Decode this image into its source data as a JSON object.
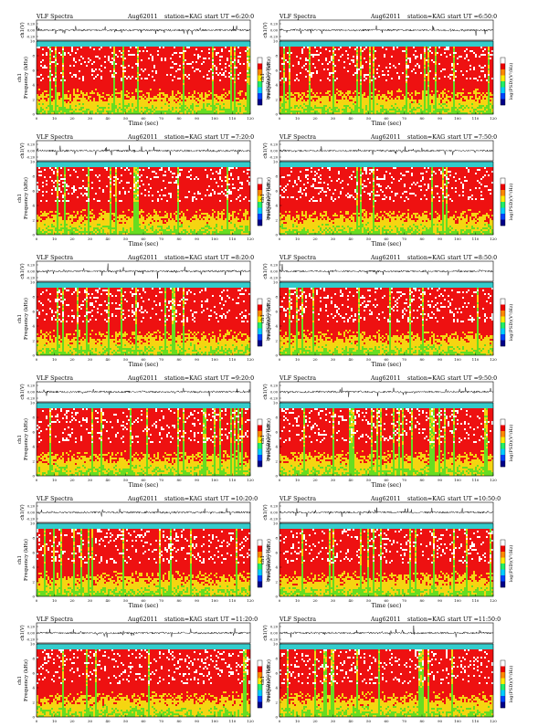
{
  "colors": {
    "spec_high": "#ee1111",
    "spec_mid": "#f5d511",
    "spec_low": "#66dd22",
    "band_top": "#33cccc",
    "colorbar": [
      "#000088",
      "#0044ff",
      "#00ccff",
      "#22ee66",
      "#ffee00",
      "#ff8800",
      "#ee0000",
      "#ffffff"
    ]
  },
  "chart_data": [
    {
      "type": "heatmap",
      "title": "VLF Spectra",
      "date": "Aug62011",
      "station": "station=KAG",
      "start_ut": "start  UT =6:20:0",
      "ylabel_wave": "ch1(V)",
      "ylabel_spec_1": "ch1",
      "ylabel_spec_2": "Frequency (kHz)",
      "xlabel": "Time  (sec)",
      "cbar_label": "log(PSD)(V²/Hz)",
      "wave_ticks": [
        "0.20",
        "0.00",
        "-0.20"
      ],
      "freq_ticks": [
        "0",
        "2",
        "4",
        "6",
        "8",
        "10"
      ],
      "time_ticks": [
        "0",
        "10",
        "20",
        "30",
        "40",
        "50",
        "60",
        "70",
        "80",
        "90",
        "100",
        "110",
        "120"
      ],
      "cbar_ticks": [
        "",
        "",
        "",
        "",
        ""
      ],
      "xlim": [
        0,
        120
      ],
      "ylim": [
        0,
        10
      ]
    },
    {
      "type": "heatmap",
      "title": "VLF Spectra",
      "date": "Aug62011",
      "station": "station=KAG",
      "start_ut": "start  UT =6:50:0",
      "ylabel_wave": "ch1(V)",
      "ylabel_spec_1": "ch1",
      "ylabel_spec_2": "Frequency (kHz)",
      "xlabel": "Time  (sec)",
      "cbar_label": "log(PSD)(V²/Hz)",
      "wave_ticks": [
        "0.20",
        "0.00",
        "-0.20"
      ],
      "freq_ticks": [
        "0",
        "2",
        "4",
        "6",
        "8",
        "10"
      ],
      "time_ticks": [
        "0",
        "10",
        "20",
        "30",
        "40",
        "50",
        "60",
        "70",
        "80",
        "90",
        "100",
        "110",
        "120"
      ],
      "cbar_ticks": [
        "",
        "",
        "",
        "",
        ""
      ],
      "xlim": [
        0,
        120
      ],
      "ylim": [
        0,
        10
      ]
    },
    {
      "type": "heatmap",
      "title": "VLF Spectra",
      "date": "Aug62011",
      "station": "station=KAG",
      "start_ut": "start  UT =7:20:0",
      "ylabel_wave": "ch1(V)",
      "ylabel_spec_1": "ch1",
      "ylabel_spec_2": "Frequency (kHz)",
      "xlabel": "Time  (sec)",
      "cbar_label": "log(PSD)(V²/Hz)",
      "wave_ticks": [
        "0.20",
        "0.00",
        "-0.20"
      ],
      "freq_ticks": [
        "0",
        "2",
        "4",
        "6",
        "8",
        "10"
      ],
      "time_ticks": [
        "0",
        "10",
        "20",
        "30",
        "40",
        "50",
        "60",
        "70",
        "80",
        "90",
        "100",
        "110",
        "120"
      ],
      "cbar_ticks": [
        "",
        "",
        "",
        "",
        ""
      ],
      "xlim": [
        0,
        120
      ],
      "ylim": [
        0,
        10
      ]
    },
    {
      "type": "heatmap",
      "title": "VLF Spectra",
      "date": "Aug62011",
      "station": "station=KAG",
      "start_ut": "start  UT =7:50:0",
      "ylabel_wave": "ch1(V)",
      "ylabel_spec_1": "ch1",
      "ylabel_spec_2": "Frequency (kHz)",
      "xlabel": "Time  (sec)",
      "cbar_label": "log(PSD)(V²/Hz)",
      "wave_ticks": [
        "0.20",
        "0.00",
        "-0.20"
      ],
      "freq_ticks": [
        "0",
        "2",
        "4",
        "6",
        "8",
        "10"
      ],
      "time_ticks": [
        "0",
        "10",
        "20",
        "30",
        "40",
        "50",
        "60",
        "70",
        "80",
        "90",
        "100",
        "110",
        "120"
      ],
      "cbar_ticks": [
        "",
        "",
        "",
        "",
        ""
      ],
      "xlim": [
        0,
        120
      ],
      "ylim": [
        0,
        10
      ]
    },
    {
      "type": "heatmap",
      "title": "VLF Spectra",
      "date": "Aug62011",
      "station": "station=KAG",
      "start_ut": "start  UT =8:20:0",
      "ylabel_wave": "ch1(V)",
      "ylabel_spec_1": "ch1",
      "ylabel_spec_2": "Frequency (kHz)",
      "xlabel": "Time  (sec)",
      "cbar_label": "log(PSD)(V²/Hz)",
      "wave_ticks": [
        "0.20",
        "0.00",
        "-0.20"
      ],
      "freq_ticks": [
        "0",
        "2",
        "4",
        "6",
        "8",
        "10"
      ],
      "time_ticks": [
        "0",
        "10",
        "20",
        "30",
        "40",
        "50",
        "60",
        "70",
        "80",
        "90",
        "100",
        "110",
        "120"
      ],
      "cbar_ticks": [
        "",
        "",
        "",
        "",
        ""
      ],
      "xlim": [
        0,
        120
      ],
      "ylim": [
        0,
        10
      ]
    },
    {
      "type": "heatmap",
      "title": "VLF Spectra",
      "date": "Aug62011",
      "station": "station=KAG",
      "start_ut": "start  UT =8:50:0",
      "ylabel_wave": "ch1(V)",
      "ylabel_spec_1": "ch1",
      "ylabel_spec_2": "Frequency (kHz)",
      "xlabel": "Time  (sec)",
      "cbar_label": "log(PSD)(V²/Hz)",
      "wave_ticks": [
        "0.20",
        "0.00",
        "-0.20"
      ],
      "freq_ticks": [
        "0",
        "2",
        "4",
        "6",
        "8",
        "10"
      ],
      "time_ticks": [
        "0",
        "10",
        "20",
        "30",
        "40",
        "50",
        "60",
        "70",
        "80",
        "90",
        "100",
        "110",
        "120"
      ],
      "cbar_ticks": [
        "",
        "",
        "",
        "",
        ""
      ],
      "xlim": [
        0,
        120
      ],
      "ylim": [
        0,
        10
      ]
    },
    {
      "type": "heatmap",
      "title": "VLF Spectra",
      "date": "Aug62011",
      "station": "station=KAG",
      "start_ut": "start  UT =9:20:0",
      "ylabel_wave": "ch1(V)",
      "ylabel_spec_1": "ch1",
      "ylabel_spec_2": "Frequency (kHz)",
      "xlabel": "Time  (sec)",
      "cbar_label": "log(PSD)(V²/Hz)",
      "wave_ticks": [
        "0.20",
        "0.00",
        "-0.20"
      ],
      "freq_ticks": [
        "0",
        "2",
        "4",
        "6",
        "8",
        "10"
      ],
      "time_ticks": [
        "0",
        "10",
        "20",
        "30",
        "40",
        "50",
        "60",
        "70",
        "80",
        "90",
        "100",
        "110",
        "120"
      ],
      "cbar_ticks": [
        "",
        "",
        "",
        "",
        ""
      ],
      "xlim": [
        0,
        120
      ],
      "ylim": [
        0,
        10
      ]
    },
    {
      "type": "heatmap",
      "title": "VLF Spectra",
      "date": "Aug62011",
      "station": "station=KAG",
      "start_ut": "start  UT =9:50:0",
      "ylabel_wave": "ch1(V)",
      "ylabel_spec_1": "ch1",
      "ylabel_spec_2": "Frequency (kHz)",
      "xlabel": "Time  (sec)",
      "cbar_label": "log(PSD)(V²/Hz)",
      "wave_ticks": [
        "0.20",
        "0.00",
        "-0.20"
      ],
      "freq_ticks": [
        "0",
        "2",
        "4",
        "6",
        "8",
        "10"
      ],
      "time_ticks": [
        "0",
        "10",
        "20",
        "30",
        "40",
        "50",
        "60",
        "70",
        "80",
        "90",
        "100",
        "110",
        "120"
      ],
      "cbar_ticks": [
        "",
        "",
        "",
        "",
        ""
      ],
      "xlim": [
        0,
        120
      ],
      "ylim": [
        0,
        10
      ]
    },
    {
      "type": "heatmap",
      "title": "VLF Spectra",
      "date": "Aug62011",
      "station": "station=KAG",
      "start_ut": "start  UT =10:20:0",
      "ylabel_wave": "ch1(V)",
      "ylabel_spec_1": "ch1",
      "ylabel_spec_2": "Frequency (kHz)",
      "xlabel": "Time  (sec)",
      "cbar_label": "log(PSD)(V²/Hz)",
      "wave_ticks": [
        "0.20",
        "0.00",
        "-0.20"
      ],
      "freq_ticks": [
        "0",
        "2",
        "4",
        "6",
        "8",
        "10"
      ],
      "time_ticks": [
        "0",
        "10",
        "20",
        "30",
        "40",
        "50",
        "60",
        "70",
        "80",
        "90",
        "100",
        "110",
        "120"
      ],
      "cbar_ticks": [
        "",
        "",
        "",
        "",
        ""
      ],
      "xlim": [
        0,
        120
      ],
      "ylim": [
        0,
        10
      ]
    },
    {
      "type": "heatmap",
      "title": "VLF Spectra",
      "date": "Aug62011",
      "station": "station=KAG",
      "start_ut": "start  UT =10:50:0",
      "ylabel_wave": "ch1(V)",
      "ylabel_spec_1": "ch1",
      "ylabel_spec_2": "Frequency (kHz)",
      "xlabel": "Time  (sec)",
      "cbar_label": "log(PSD)(V²/Hz)",
      "wave_ticks": [
        "0.20",
        "0.00",
        "-0.20"
      ],
      "freq_ticks": [
        "0",
        "2",
        "4",
        "6",
        "8",
        "10"
      ],
      "time_ticks": [
        "0",
        "10",
        "20",
        "30",
        "40",
        "50",
        "60",
        "70",
        "80",
        "90",
        "100",
        "110",
        "120"
      ],
      "cbar_ticks": [
        "",
        "",
        "",
        "",
        ""
      ],
      "xlim": [
        0,
        120
      ],
      "ylim": [
        0,
        10
      ]
    },
    {
      "type": "heatmap",
      "title": "VLF Spectra",
      "date": "Aug62011",
      "station": "station=KAG",
      "start_ut": "start  UT =11:20:0",
      "ylabel_wave": "ch1(V)",
      "ylabel_spec_1": "ch1",
      "ylabel_spec_2": "Frequency (kHz)",
      "xlabel": "Time  (sec)",
      "cbar_label": "log(PSD)(V²/Hz)",
      "wave_ticks": [
        "0.20",
        "0.00",
        "-0.20"
      ],
      "freq_ticks": [
        "0",
        "2",
        "4",
        "6",
        "8",
        "10"
      ],
      "time_ticks": [
        "0",
        "10",
        "20",
        "30",
        "40",
        "50",
        "60",
        "70",
        "80",
        "90",
        "100",
        "110",
        "120"
      ],
      "cbar_ticks": [
        "",
        "",
        "",
        "",
        ""
      ],
      "xlim": [
        0,
        120
      ],
      "ylim": [
        0,
        10
      ]
    },
    {
      "type": "heatmap",
      "title": "VLF Spectra",
      "date": "Aug62011",
      "station": "station=KAG",
      "start_ut": "start  UT =11:50:0",
      "ylabel_wave": "ch1(V)",
      "ylabel_spec_1": "ch1",
      "ylabel_spec_2": "Frequency (kHz)",
      "xlabel": "Time  (sec)",
      "cbar_label": "log(PSD)(V²/Hz)",
      "wave_ticks": [
        "0.20",
        "0.00",
        "-0.20"
      ],
      "freq_ticks": [
        "0",
        "2",
        "4",
        "6",
        "8",
        "10"
      ],
      "time_ticks": [
        "0",
        "10",
        "20",
        "30",
        "40",
        "50",
        "60",
        "70",
        "80",
        "90",
        "100",
        "110",
        "120"
      ],
      "cbar_ticks": [
        "",
        "",
        "",
        "",
        ""
      ],
      "xlim": [
        0,
        120
      ],
      "ylim": [
        0,
        10
      ]
    }
  ]
}
